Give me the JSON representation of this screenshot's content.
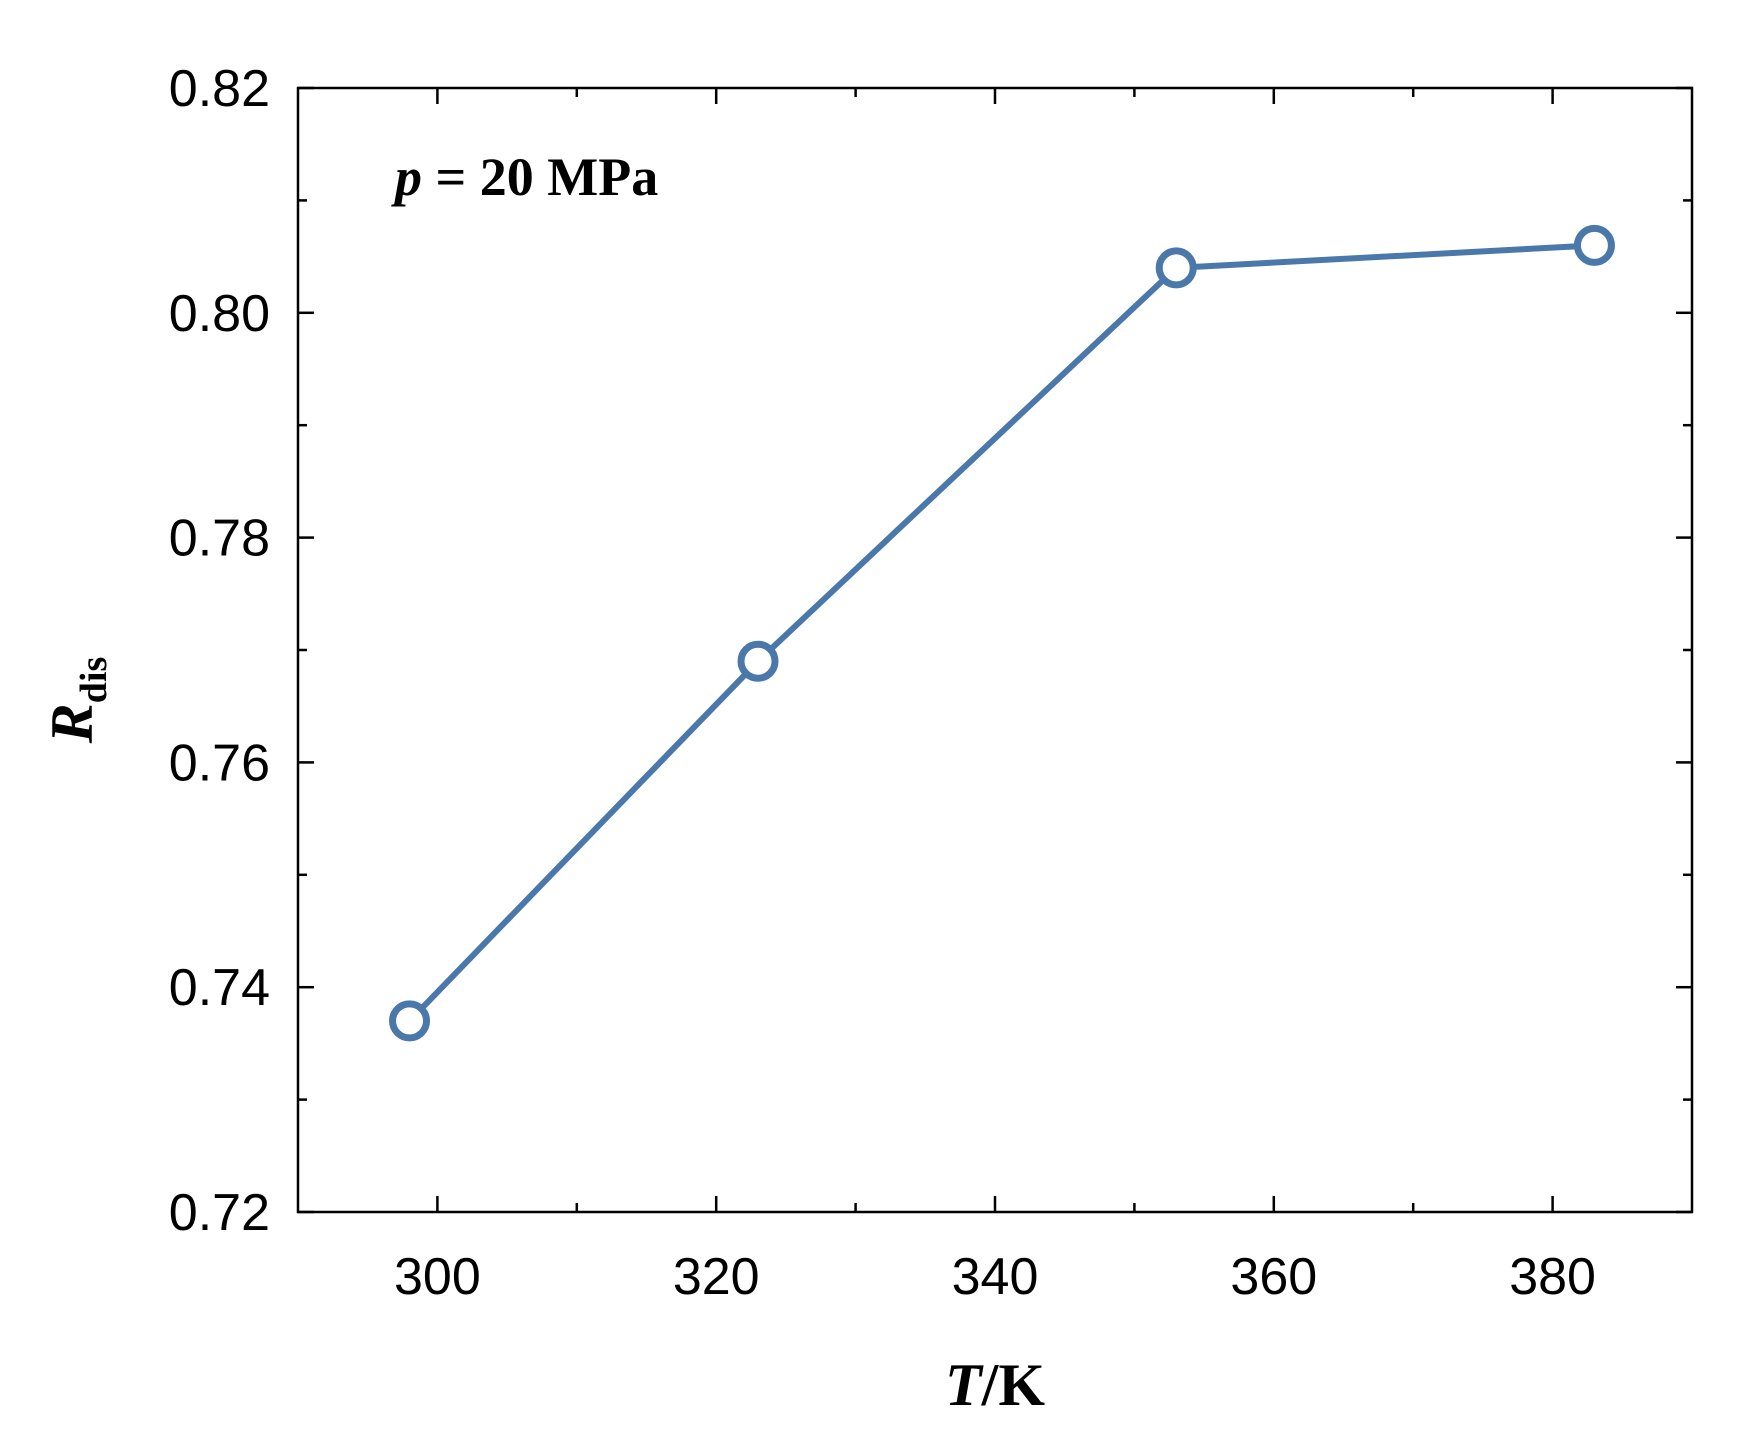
{
  "chart_data": {
    "type": "line",
    "annotation": {
      "var": "p",
      "rest": " = 20 MPa"
    },
    "xlabel": {
      "var": "T",
      "rest": "/K"
    },
    "ylabel": {
      "var": "R",
      "sub": "dis"
    },
    "xlim": [
      290,
      390
    ],
    "ylim": [
      0.72,
      0.82
    ],
    "x_ticks": [
      300,
      320,
      340,
      360,
      380
    ],
    "x_tick_labels": [
      "300",
      "320",
      "340",
      "360",
      "380"
    ],
    "y_ticks": [
      0.72,
      0.74,
      0.76,
      0.78,
      0.8,
      0.82
    ],
    "y_tick_labels": [
      "0.72",
      "0.74",
      "0.76",
      "0.78",
      "0.80",
      "0.82"
    ],
    "series": [
      {
        "marker": "open-circle",
        "color": "#4a78aa",
        "x": [
          298,
          323,
          353,
          383
        ],
        "y": [
          0.737,
          0.769,
          0.804,
          0.806
        ]
      }
    ]
  }
}
